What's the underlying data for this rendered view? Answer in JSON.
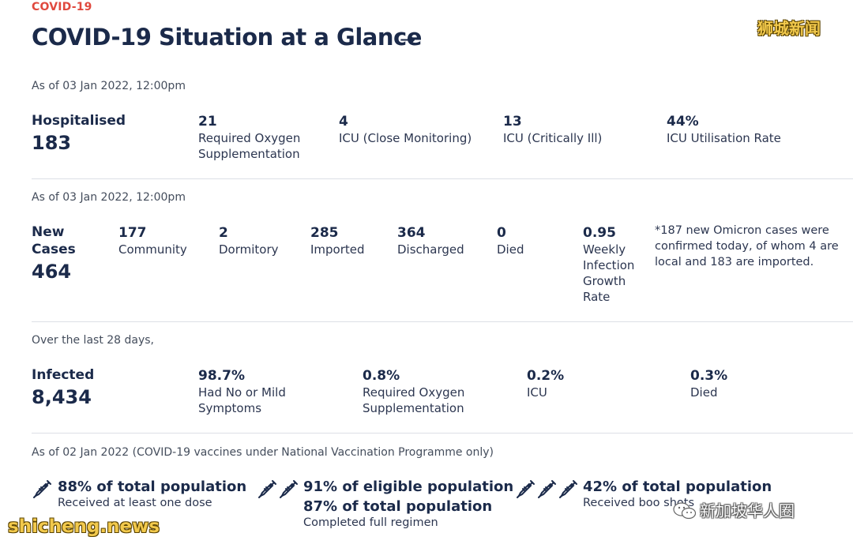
{
  "header": {
    "kicker": "COVID-19",
    "title": "COVID-19 Situation at a Glance",
    "arrow": "→",
    "watermark_top": "狮城新闻"
  },
  "hospital": {
    "as_of": "As of 03 Jan 2022, 12:00pm",
    "label": "Hospitalised",
    "value": "183",
    "stats": [
      {
        "value": "21",
        "label": "Required Oxygen Supplementation"
      },
      {
        "value": "4",
        "label": "ICU (Close Monitoring)"
      },
      {
        "value": "13",
        "label": "ICU (Critically Ill)"
      },
      {
        "value": "44%",
        "label": "ICU Utilisation Rate"
      }
    ]
  },
  "cases": {
    "as_of": "As of 03 Jan 2022, 12:00pm",
    "label_line1": "New",
    "label_line2": "Cases",
    "value": "464",
    "stats": [
      {
        "value": "177",
        "label": "Community"
      },
      {
        "value": "2",
        "label": "Dormitory"
      },
      {
        "value": "285",
        "label": "Imported"
      },
      {
        "value": "364",
        "label": "Discharged"
      },
      {
        "value": "0",
        "label": "Died"
      },
      {
        "value": "0.95",
        "label": "Weekly Infection Growth Rate"
      }
    ],
    "note": "*187 new Omicron cases were confirmed today, of whom 4 are local and 183 are imported."
  },
  "infected": {
    "as_of": "Over the last 28 days,",
    "label": "Infected",
    "value": "8,434",
    "stats": [
      {
        "value": "98.7%",
        "label": "Had No or Mild Symptoms"
      },
      {
        "value": "0.8%",
        "label": "Required Oxygen Supplementation"
      },
      {
        "value": "0.2%",
        "label": "ICU"
      },
      {
        "value": "0.3%",
        "label": "Died"
      }
    ]
  },
  "vaccination": {
    "as_of": "As of 02 Jan 2022 (COVID-19 vaccines under National Vaccination Programme only)",
    "items": [
      {
        "icon": "syringe-icon",
        "doses": 1,
        "main": "88% of total population",
        "main2": "",
        "sub": "Received at least one dose"
      },
      {
        "icon": "syringe-icon",
        "doses": 2,
        "main": "91% of eligible population",
        "main2": "87% of total population",
        "sub": "Completed full regimen"
      },
      {
        "icon": "syringe-icon",
        "doses": 3,
        "main": "42% of total population",
        "main2": "",
        "sub": "Received boo    shots"
      }
    ]
  },
  "watermarks": {
    "bottom_left": "shicheng.news",
    "bottom_right": "新加坡华人圈"
  },
  "colors": {
    "accent_red": "#e0493e",
    "navy": "#1b2a4a",
    "watermark_yellow": "#f2c94c"
  }
}
